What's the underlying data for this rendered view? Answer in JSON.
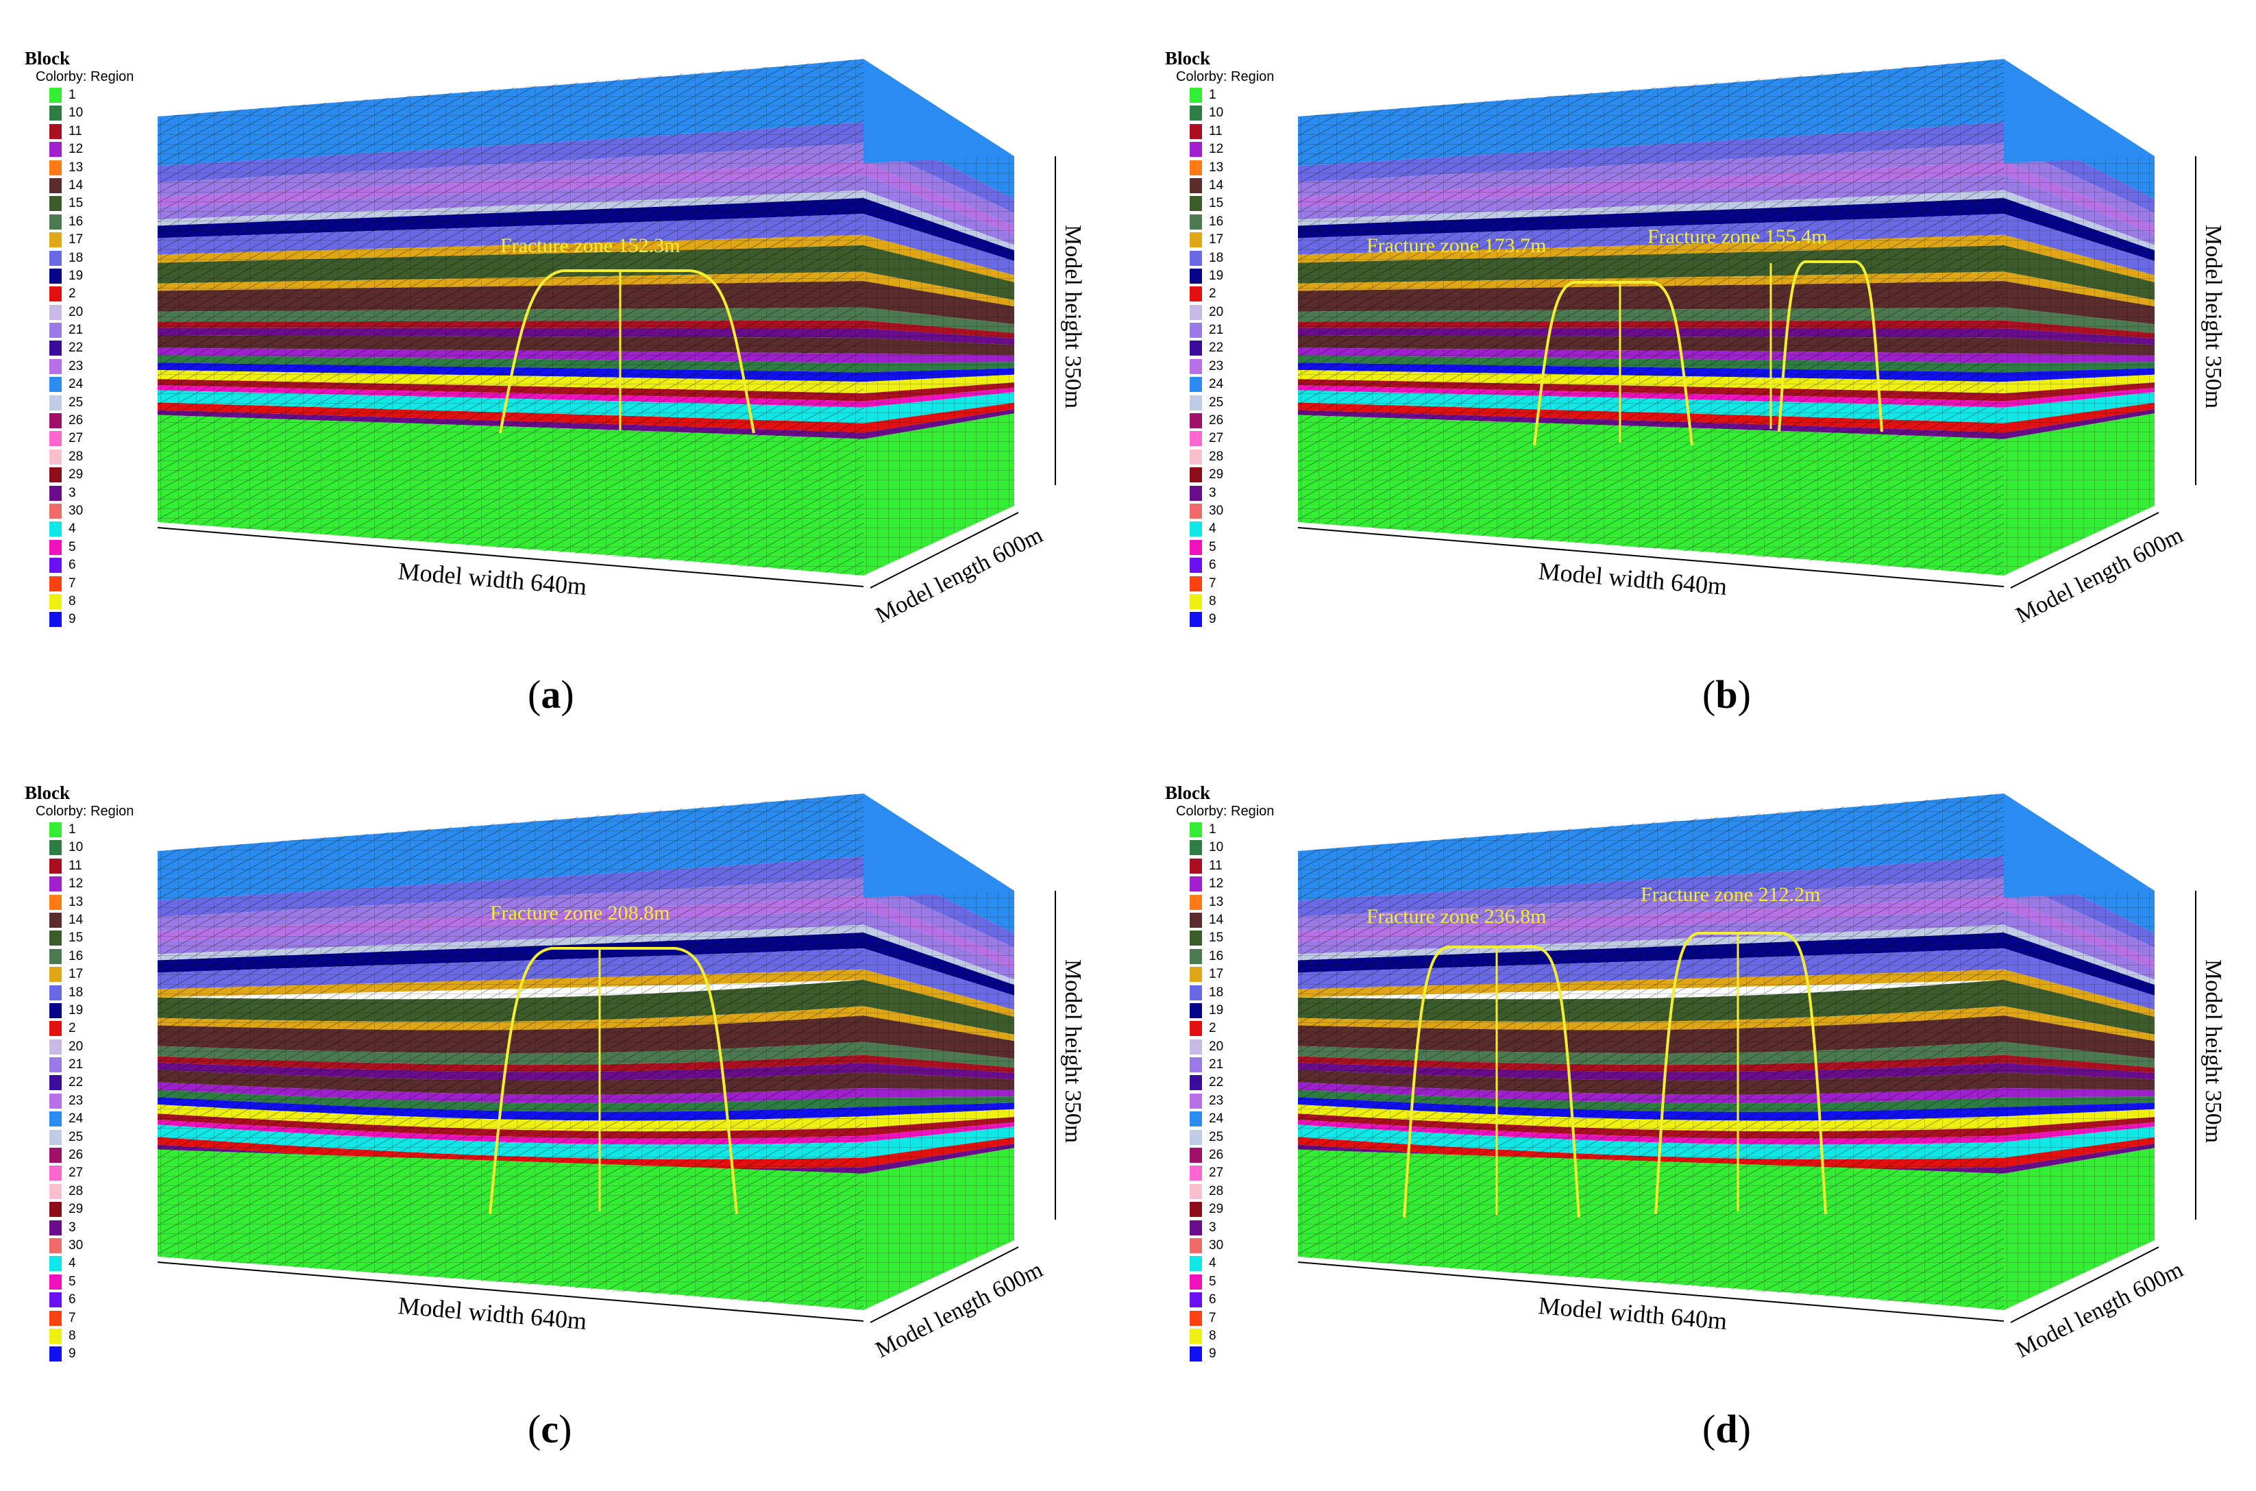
{
  "figure": {
    "legend": {
      "title": "Block",
      "subtitle": "Colorby: Region",
      "items": [
        {
          "label": "1",
          "color": "#33ee33"
        },
        {
          "label": "10",
          "color": "#2e7d43"
        },
        {
          "label": "11",
          "color": "#aa1020"
        },
        {
          "label": "12",
          "color": "#a020d0"
        },
        {
          "label": "13",
          "color": "#ff7a14"
        },
        {
          "label": "14",
          "color": "#5a2c2c"
        },
        {
          "label": "15",
          "color": "#3c5c2c"
        },
        {
          "label": "16",
          "color": "#4c7a50"
        },
        {
          "label": "17",
          "color": "#e0a614"
        },
        {
          "label": "18",
          "color": "#6a6ae6"
        },
        {
          "label": "19",
          "color": "#04048a"
        },
        {
          "label": "2",
          "color": "#e41010"
        },
        {
          "label": "20",
          "color": "#c8b8e6"
        },
        {
          "label": "21",
          "color": "#9a7ae6"
        },
        {
          "label": "22",
          "color": "#3c0c9c"
        },
        {
          "label": "23",
          "color": "#b870e6"
        },
        {
          "label": "24",
          "color": "#2a8cf0"
        },
        {
          "label": "25",
          "color": "#c0cce6"
        },
        {
          "label": "26",
          "color": "#a0106a"
        },
        {
          "label": "27",
          "color": "#ff66d0"
        },
        {
          "label": "28",
          "color": "#f8c0cc"
        },
        {
          "label": "29",
          "color": "#8c0c18"
        },
        {
          "label": "3",
          "color": "#6a0c8c"
        },
        {
          "label": "30",
          "color": "#f06a6a"
        },
        {
          "label": "4",
          "color": "#10e8e8"
        },
        {
          "label": "5",
          "color": "#f010c0"
        },
        {
          "label": "6",
          "color": "#6a10f0"
        },
        {
          "label": "7",
          "color": "#ff4010"
        },
        {
          "label": "8",
          "color": "#f0f010"
        },
        {
          "label": "9",
          "color": "#1010f0"
        }
      ]
    },
    "dimension_labels": {
      "width": "Model width 640m",
      "length": "Model length 600m",
      "height": "Model height 350m"
    },
    "panels": [
      {
        "letter": "a",
        "fractures": [
          "Fracture zone 152.3m"
        ]
      },
      {
        "letter": "b",
        "fractures": [
          "Fracture zone 173.7m",
          "Fracture zone 155.4m"
        ]
      },
      {
        "letter": "c",
        "fractures": [
          "Fracture zone 208.8m"
        ]
      },
      {
        "letter": "d",
        "fractures": [
          "Fracture zone 236.8m",
          "Fracture zone 212.2m"
        ]
      }
    ]
  }
}
